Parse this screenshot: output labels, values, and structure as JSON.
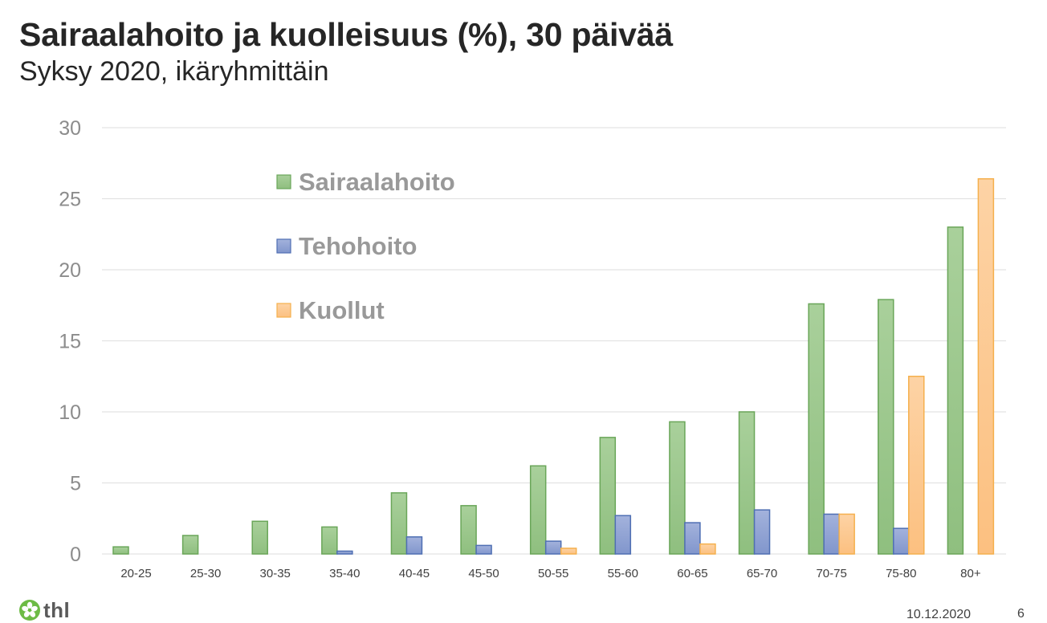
{
  "header": {
    "title": "Sairaalahoito ja kuolleisuus (%), 30 päivää",
    "subtitle": "Syksy 2020, ikäryhmittäin"
  },
  "footer": {
    "logo_text": "thl",
    "logo_icon": "flower-icon",
    "date": "10.12.2020",
    "page_number": "6"
  },
  "colors": {
    "Sairaalahoito": {
      "fill_top": "#a9d09b",
      "fill_bottom": "#8fbf7f",
      "stroke": "#6aa659"
    },
    "Tehohoito": {
      "fill_top": "#a3b2dc",
      "fill_bottom": "#8196cc",
      "stroke": "#4f6fb3"
    },
    "Kuollut": {
      "fill_top": "#fdd3a5",
      "fill_bottom": "#fcc080",
      "stroke": "#f5b04d"
    },
    "gridline": "#e3e3e3"
  },
  "chart_data": {
    "type": "bar",
    "title": "Sairaalahoito ja kuolleisuus (%), 30 päivää",
    "subtitle": "Syksy 2020, ikäryhmittäin",
    "xlabel": "",
    "ylabel": "",
    "ylim": [
      0,
      30
    ],
    "yticks": [
      0,
      5,
      10,
      15,
      20,
      25,
      30
    ],
    "grid": true,
    "legend_position": "upper-left-inside",
    "categories": [
      "20-25",
      "25-30",
      "30-35",
      "35-40",
      "40-45",
      "45-50",
      "50-55",
      "55-60",
      "60-65",
      "65-70",
      "70-75",
      "75-80",
      "80+"
    ],
    "series": [
      {
        "name": "Sairaalahoito",
        "values": [
          0.5,
          1.3,
          2.3,
          1.9,
          4.3,
          3.4,
          6.2,
          8.2,
          9.3,
          10.0,
          17.6,
          17.9,
          23.0
        ]
      },
      {
        "name": "Tehohoito",
        "values": [
          0,
          0,
          0,
          0.2,
          1.2,
          0.6,
          0.9,
          2.7,
          2.2,
          3.1,
          2.8,
          1.8,
          0
        ]
      },
      {
        "name": "Kuollut",
        "values": [
          0,
          0,
          0,
          0,
          0,
          0,
          0.4,
          0,
          0.7,
          0,
          2.8,
          12.5,
          26.4
        ]
      }
    ]
  }
}
